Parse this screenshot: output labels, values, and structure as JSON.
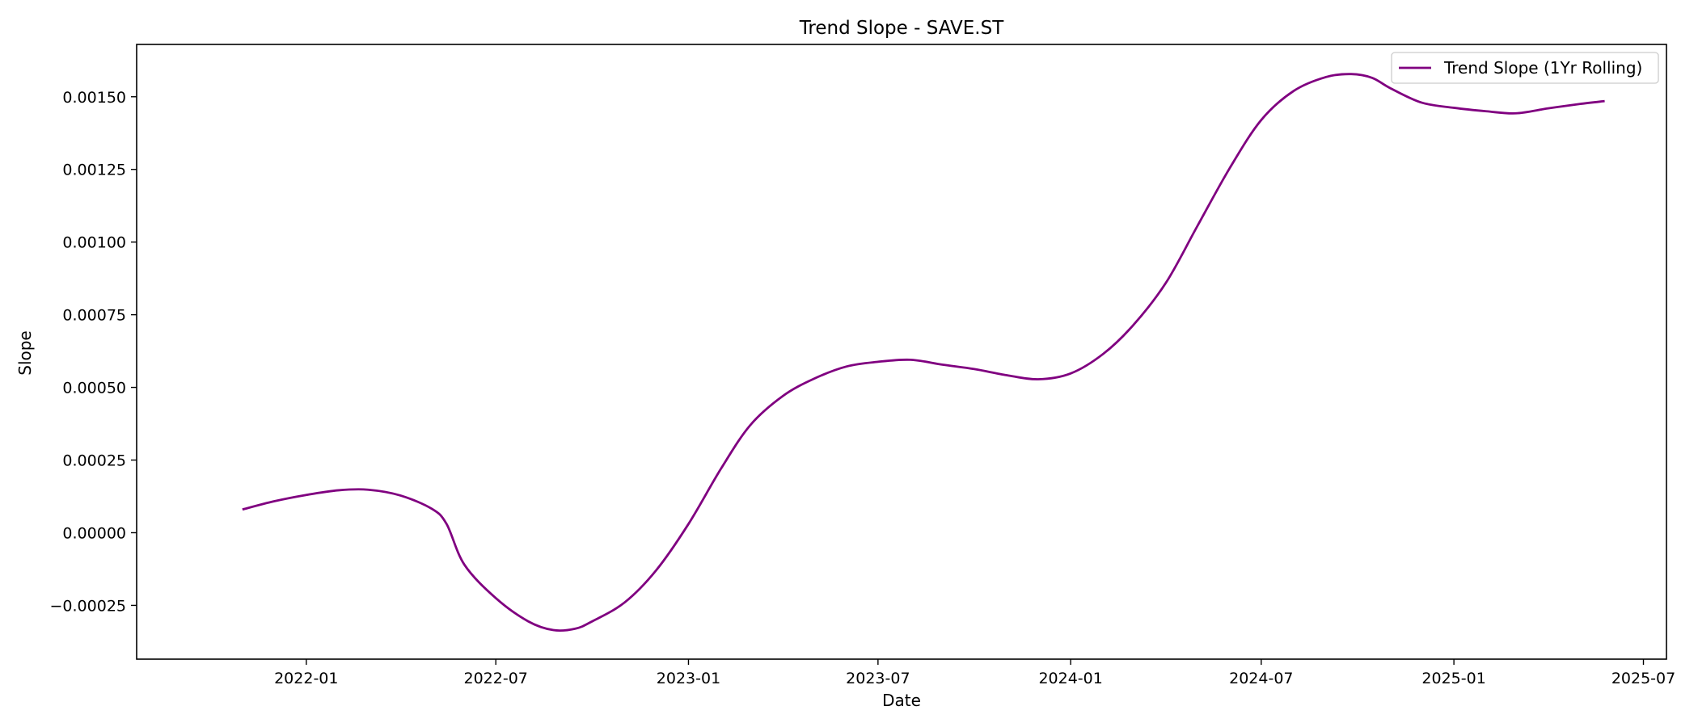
{
  "chart_data": {
    "type": "line",
    "title": "Trend Slope - SAVE.ST",
    "xlabel": "Date",
    "ylabel": "Slope",
    "x_tick_labels": [
      "2022-01",
      "2022-07",
      "2023-01",
      "2023-07",
      "2024-01",
      "2024-07",
      "2025-01",
      "2025-07"
    ],
    "y_tick_labels": [
      "−0.00025",
      "0.00000",
      "0.00025",
      "0.00050",
      "0.00075",
      "0.00100",
      "0.00125",
      "0.00150"
    ],
    "xlim": [
      "2021-07-23",
      "2025-07-23"
    ],
    "ylim": [
      -0.000435,
      0.00168
    ],
    "grid": false,
    "legend_position": "top-right",
    "series": [
      {
        "name": "Trend Slope (1Yr Rolling)",
        "color": "#800080",
        "points": [
          {
            "x": "2021-11-01",
            "y": 8e-05
          },
          {
            "x": "2021-12-01",
            "y": 0.000108
          },
          {
            "x": "2022-01-01",
            "y": 0.00013
          },
          {
            "x": "2022-02-01",
            "y": 0.000146
          },
          {
            "x": "2022-03-01",
            "y": 0.000148
          },
          {
            "x": "2022-04-01",
            "y": 0.000128
          },
          {
            "x": "2022-05-01",
            "y": 8.2e-05
          },
          {
            "x": "2022-05-15",
            "y": 3e-05
          },
          {
            "x": "2022-06-01",
            "y": -0.00011
          },
          {
            "x": "2022-07-01",
            "y": -0.000225
          },
          {
            "x": "2022-08-01",
            "y": -0.000305
          },
          {
            "x": "2022-08-25",
            "y": -0.000335
          },
          {
            "x": "2022-09-15",
            "y": -0.00033
          },
          {
            "x": "2022-10-01",
            "y": -0.000305
          },
          {
            "x": "2022-11-01",
            "y": -0.00024
          },
          {
            "x": "2022-12-01",
            "y": -0.00013
          },
          {
            "x": "2023-01-01",
            "y": 3e-05
          },
          {
            "x": "2023-02-01",
            "y": 0.00022
          },
          {
            "x": "2023-03-01",
            "y": 0.00037
          },
          {
            "x": "2023-04-01",
            "y": 0.00047
          },
          {
            "x": "2023-05-01",
            "y": 0.00053
          },
          {
            "x": "2023-06-01",
            "y": 0.000572
          },
          {
            "x": "2023-07-01",
            "y": 0.000588
          },
          {
            "x": "2023-08-01",
            "y": 0.000595
          },
          {
            "x": "2023-09-01",
            "y": 0.000578
          },
          {
            "x": "2023-10-01",
            "y": 0.000563
          },
          {
            "x": "2023-11-01",
            "y": 0.000542
          },
          {
            "x": "2023-12-01",
            "y": 0.000528
          },
          {
            "x": "2024-01-01",
            "y": 0.000548
          },
          {
            "x": "2024-02-01",
            "y": 0.000615
          },
          {
            "x": "2024-03-01",
            "y": 0.000715
          },
          {
            "x": "2024-04-01",
            "y": 0.00086
          },
          {
            "x": "2024-05-01",
            "y": 0.001055
          },
          {
            "x": "2024-06-01",
            "y": 0.001255
          },
          {
            "x": "2024-07-01",
            "y": 0.00142
          },
          {
            "x": "2024-08-01",
            "y": 0.00152
          },
          {
            "x": "2024-09-01",
            "y": 0.001568
          },
          {
            "x": "2024-09-25",
            "y": 0.001578
          },
          {
            "x": "2024-10-15",
            "y": 0.001565
          },
          {
            "x": "2024-11-01",
            "y": 0.00153
          },
          {
            "x": "2024-12-01",
            "y": 0.00148
          },
          {
            "x": "2025-01-01",
            "y": 0.001462
          },
          {
            "x": "2025-02-01",
            "y": 0.00145
          },
          {
            "x": "2025-03-01",
            "y": 0.001443
          },
          {
            "x": "2025-04-01",
            "y": 0.00146
          },
          {
            "x": "2025-05-01",
            "y": 0.001475
          },
          {
            "x": "2025-05-25",
            "y": 0.001485
          }
        ]
      }
    ]
  }
}
